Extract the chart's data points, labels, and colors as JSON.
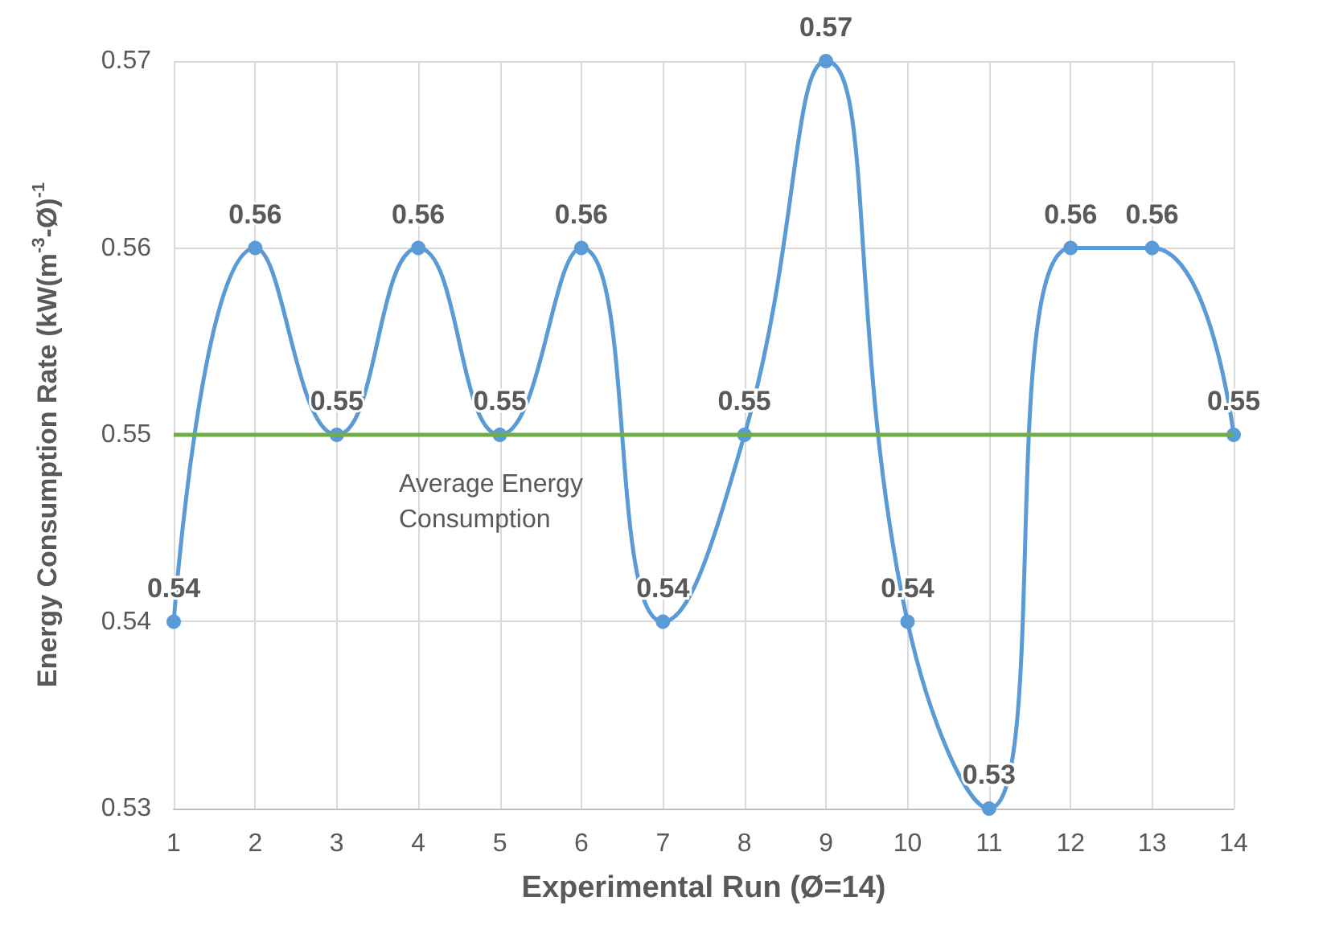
{
  "chart_data": {
    "type": "line",
    "xlabel": "Experimental Run (Ø=14)",
    "ylabel": "Energy Consumption Rate (kW(m$^{-3}$-Ø)$^{-1}$",
    "x": [
      1,
      2,
      3,
      4,
      5,
      6,
      7,
      8,
      9,
      10,
      11,
      12,
      13,
      14
    ],
    "xlim": [
      1,
      14
    ],
    "xticks": [
      1,
      2,
      3,
      4,
      5,
      6,
      7,
      8,
      9,
      10,
      11,
      12,
      13,
      14
    ],
    "series": [
      {
        "color": "#5b9bd5",
        "values": [
          0.54,
          0.56,
          0.55,
          0.56,
          0.55,
          0.56,
          0.54,
          0.55,
          0.57,
          0.54,
          0.53,
          0.56,
          0.56,
          0.55
        ]
      }
    ],
    "ylim": [
      0.53,
      0.57
    ],
    "yticks": [
      0.53,
      0.54,
      0.55,
      0.56,
      0.57
    ],
    "grid": true,
    "marker": "circle",
    "line_style": "solid",
    "data_labels": true,
    "ref_lines": [
      {
        "axis": "y",
        "value": 0.55,
        "label": "Average Energy Consumption",
        "color": "#70ad47",
        "line_style": "solid"
      }
    ]
  }
}
